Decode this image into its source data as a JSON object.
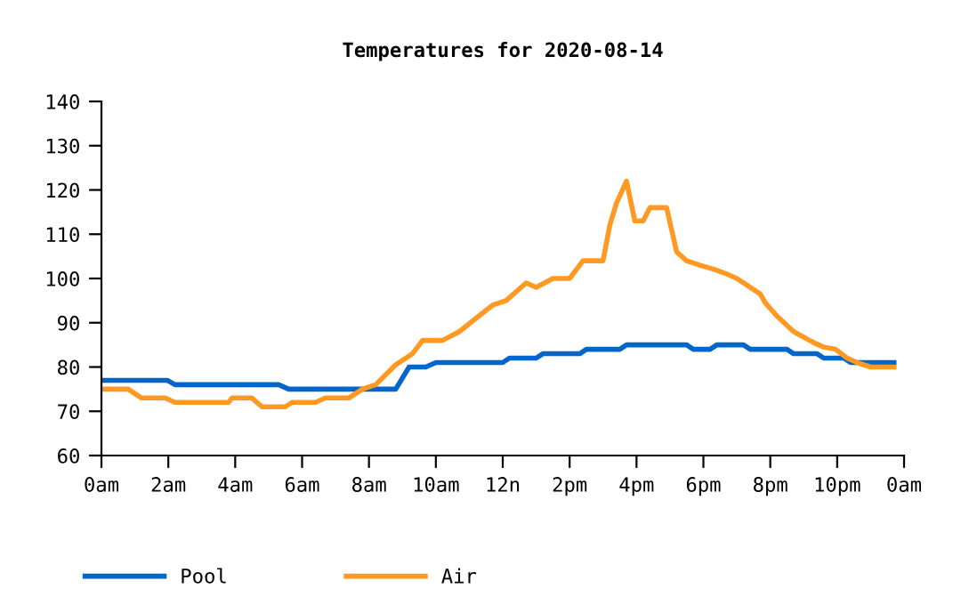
{
  "chart_data": {
    "type": "line",
    "title": "Temperatures for 2020-08-14",
    "xlim": [
      "2020-08-14T00:00",
      "2020-08-15T00:00"
    ],
    "ylim": [
      60,
      140
    ],
    "xticks": [
      {
        "value": "2020-08-14T00:00",
        "label": "0am"
      },
      {
        "value": "2020-08-14T02:00",
        "label": "2am"
      },
      {
        "value": "2020-08-14T04:00",
        "label": "4am"
      },
      {
        "value": "2020-08-14T06:00",
        "label": "6am"
      },
      {
        "value": "2020-08-14T08:00",
        "label": "8am"
      },
      {
        "value": "2020-08-14T10:00",
        "label": "10am"
      },
      {
        "value": "2020-08-14T12:00",
        "label": "12n"
      },
      {
        "value": "2020-08-14T14:00",
        "label": "2pm"
      },
      {
        "value": "2020-08-14T16:00",
        "label": "4pm"
      },
      {
        "value": "2020-08-14T18:00",
        "label": "6pm"
      },
      {
        "value": "2020-08-14T20:00",
        "label": "8pm"
      },
      {
        "value": "2020-08-14T22:00",
        "label": "10pm"
      },
      {
        "value": "2020-08-15T00:00",
        "label": "0am"
      }
    ],
    "yticks": [
      60,
      70,
      80,
      90,
      100,
      110,
      120,
      130,
      140
    ],
    "grid": false,
    "legend": "bottom left",
    "line_style": "solid",
    "marker": "none",
    "series": [
      {
        "name": "Pool",
        "color": "#0066cc",
        "x": [
          "2020-08-14T00:00",
          "2020-08-14T01:58",
          "2020-08-14T02:12",
          "2020-08-14T05:18",
          "2020-08-14T05:36",
          "2020-08-14T08:48",
          "2020-08-14T09:12",
          "2020-08-14T09:42",
          "2020-08-14T10:00",
          "2020-08-14T12:00",
          "2020-08-14T12:12",
          "2020-08-14T13:00",
          "2020-08-14T13:12",
          "2020-08-14T14:18",
          "2020-08-14T14:30",
          "2020-08-14T15:30",
          "2020-08-14T15:42",
          "2020-08-14T17:30",
          "2020-08-14T17:42",
          "2020-08-14T18:12",
          "2020-08-14T18:24",
          "2020-08-14T19:12",
          "2020-08-14T19:24",
          "2020-08-14T20:30",
          "2020-08-14T20:42",
          "2020-08-14T21:24",
          "2020-08-14T21:36",
          "2020-08-14T22:12",
          "2020-08-14T22:24",
          "2020-08-14T23:42"
        ],
        "values": [
          77,
          77,
          76,
          76,
          75,
          75,
          80,
          80,
          81,
          81,
          82,
          82,
          83,
          83,
          84,
          84,
          85,
          85,
          84,
          84,
          85,
          85,
          84,
          84,
          83,
          83,
          82,
          82,
          81,
          81
        ]
      },
      {
        "name": "Air",
        "color": "#ff9922",
        "x": [
          "2020-08-14T00:00",
          "2020-08-14T00:48",
          "2020-08-14T01:12",
          "2020-08-14T01:54",
          "2020-08-14T02:12",
          "2020-08-14T03:48",
          "2020-08-14T03:54",
          "2020-08-14T04:30",
          "2020-08-14T04:48",
          "2020-08-14T05:30",
          "2020-08-14T05:42",
          "2020-08-14T06:24",
          "2020-08-14T06:42",
          "2020-08-14T07:24",
          "2020-08-14T07:48",
          "2020-08-14T08:12",
          "2020-08-14T08:48",
          "2020-08-14T09:18",
          "2020-08-14T09:36",
          "2020-08-14T10:12",
          "2020-08-14T10:42",
          "2020-08-14T11:12",
          "2020-08-14T11:42",
          "2020-08-14T12:06",
          "2020-08-14T12:42",
          "2020-08-14T13:00",
          "2020-08-14T13:30",
          "2020-08-14T14:00",
          "2020-08-14T14:24",
          "2020-08-14T15:00",
          "2020-08-14T15:12",
          "2020-08-14T15:24",
          "2020-08-14T15:42",
          "2020-08-14T15:57",
          "2020-08-14T16:12",
          "2020-08-14T16:24",
          "2020-08-14T16:54",
          "2020-08-14T17:12",
          "2020-08-14T17:30",
          "2020-08-14T17:54",
          "2020-08-14T18:21",
          "2020-08-14T18:42",
          "2020-08-14T19:00",
          "2020-08-14T19:42",
          "2020-08-14T19:51",
          "2020-08-14T20:12",
          "2020-08-14T20:42",
          "2020-08-14T21:18",
          "2020-08-14T21:36",
          "2020-08-14T21:57",
          "2020-08-14T22:18",
          "2020-08-14T22:36",
          "2020-08-14T23:00",
          "2020-08-14T23:42"
        ],
        "values": [
          75,
          75,
          73,
          73,
          72,
          72,
          73,
          73,
          71,
          71,
          72,
          72,
          73,
          73,
          75,
          76,
          80.5,
          83,
          86,
          86,
          88,
          91,
          94,
          95,
          99,
          98,
          100,
          100,
          104,
          104,
          112,
          117,
          122,
          113,
          113,
          116,
          116,
          106,
          104,
          103,
          102,
          101,
          100,
          96.5,
          94.5,
          91.5,
          88,
          85.5,
          84.5,
          84,
          82,
          81,
          80,
          80
        ]
      }
    ]
  }
}
